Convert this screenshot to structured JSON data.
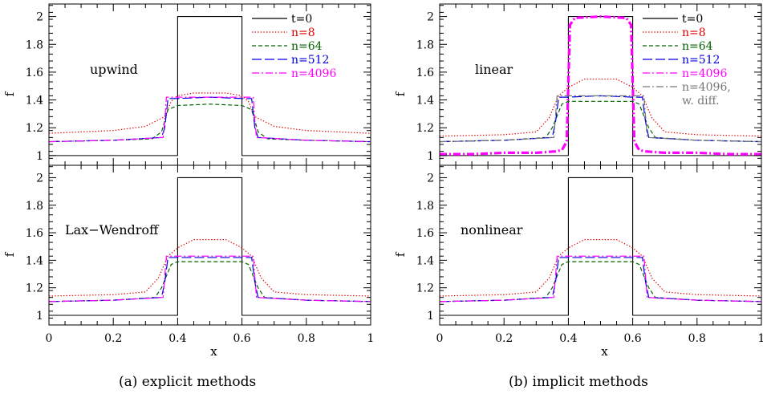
{
  "colors": {
    "t0": "#000000",
    "n8": "#e00000",
    "n64": "#006400",
    "n512": "#0000e0",
    "n4096": "#ff00ff",
    "diff": "#777777"
  },
  "captions": [
    "(a) explicit methods",
    "(b) implicit methods"
  ],
  "chart_data": [
    {
      "type": "line",
      "figure": "a",
      "xlabel": "x",
      "ylabel": "f",
      "xlim": [
        0,
        1
      ],
      "ylim": [
        0.93,
        2.09
      ],
      "xticks": [
        "0",
        "0.2",
        "0.4",
        "0.6",
        "0.8",
        "1"
      ],
      "yticks": [
        "1",
        "1.2",
        "1.4",
        "1.6",
        "1.8",
        "2"
      ],
      "legend": {
        "position": "top-right",
        "entries": [
          "t=0",
          "n=8",
          "n=64",
          "n=512",
          "n=4096"
        ]
      },
      "annotation": "upwind",
      "series": [
        {
          "name": "t=0",
          "style": "solid",
          "color": "#000000",
          "x": [
            0,
            0.4,
            0.4,
            0.6,
            0.6,
            1
          ],
          "y": [
            1,
            1,
            2,
            2,
            1,
            1
          ]
        },
        {
          "name": "n=8",
          "style": "dotted",
          "color": "#e00000",
          "x": [
            0,
            0.1,
            0.2,
            0.3,
            0.36,
            0.38,
            0.4,
            0.45,
            0.5,
            0.55,
            0.6,
            0.62,
            0.64,
            0.7,
            0.8,
            0.9,
            1
          ],
          "y": [
            1.16,
            1.17,
            1.18,
            1.21,
            1.28,
            1.39,
            1.43,
            1.45,
            1.45,
            1.45,
            1.43,
            1.39,
            1.28,
            1.21,
            1.18,
            1.17,
            1.16
          ]
        },
        {
          "name": "n=64",
          "style": "dashed",
          "color": "#006400",
          "x": [
            0,
            0.2,
            0.32,
            0.35,
            0.37,
            0.4,
            0.5,
            0.6,
            0.63,
            0.65,
            0.68,
            0.8,
            1
          ],
          "y": [
            1.1,
            1.11,
            1.12,
            1.17,
            1.33,
            1.36,
            1.37,
            1.36,
            1.33,
            1.17,
            1.12,
            1.11,
            1.1
          ]
        },
        {
          "name": "n=512",
          "style": "longdash",
          "color": "#0000e0",
          "x": [
            0,
            0.2,
            0.35,
            0.36,
            0.37,
            0.4,
            0.5,
            0.6,
            0.63,
            0.64,
            0.65,
            0.8,
            1
          ],
          "y": [
            1.1,
            1.11,
            1.13,
            1.2,
            1.41,
            1.41,
            1.42,
            1.41,
            1.41,
            1.2,
            1.13,
            1.11,
            1.1
          ]
        },
        {
          "name": "n=4096",
          "style": "dashdot",
          "color": "#ff00ff",
          "x": [
            0,
            0.2,
            0.355,
            0.36,
            0.365,
            0.4,
            0.5,
            0.6,
            0.635,
            0.64,
            0.645,
            0.8,
            1
          ],
          "y": [
            1.1,
            1.11,
            1.13,
            1.25,
            1.42,
            1.42,
            1.42,
            1.42,
            1.42,
            1.25,
            1.13,
            1.11,
            1.1
          ]
        }
      ]
    },
    {
      "type": "line",
      "figure": "a",
      "xlabel": "x",
      "ylabel": "f",
      "xlim": [
        0,
        1
      ],
      "ylim": [
        0.93,
        2.09
      ],
      "xticks": [
        "0",
        "0.2",
        "0.4",
        "0.6",
        "0.8",
        "1"
      ],
      "yticks": [
        "1",
        "1.2",
        "1.4",
        "1.6",
        "1.8",
        "2"
      ],
      "annotation": "Lax−Wendroff",
      "series": [
        {
          "name": "t=0",
          "style": "solid",
          "color": "#000000",
          "x": [
            0,
            0.4,
            0.4,
            0.6,
            0.6,
            1
          ],
          "y": [
            1,
            1,
            2,
            2,
            1,
            1
          ]
        },
        {
          "name": "n=8",
          "style": "dotted",
          "color": "#e00000",
          "x": [
            0,
            0.2,
            0.3,
            0.34,
            0.37,
            0.4,
            0.45,
            0.5,
            0.55,
            0.6,
            0.63,
            0.66,
            0.7,
            0.8,
            1
          ],
          "y": [
            1.14,
            1.15,
            1.17,
            1.27,
            1.43,
            1.49,
            1.55,
            1.55,
            1.55,
            1.49,
            1.43,
            1.27,
            1.17,
            1.15,
            1.14
          ]
        },
        {
          "name": "n=64",
          "style": "dashed",
          "color": "#006400",
          "x": [
            0,
            0.2,
            0.33,
            0.35,
            0.38,
            0.4,
            0.5,
            0.6,
            0.62,
            0.65,
            0.67,
            0.8,
            1
          ],
          "y": [
            1.1,
            1.11,
            1.13,
            1.2,
            1.37,
            1.39,
            1.39,
            1.39,
            1.37,
            1.2,
            1.13,
            1.11,
            1.1
          ]
        },
        {
          "name": "n=512",
          "style": "longdash",
          "color": "#0000e0",
          "x": [
            0,
            0.2,
            0.35,
            0.36,
            0.37,
            0.4,
            0.5,
            0.6,
            0.63,
            0.64,
            0.65,
            0.8,
            1
          ],
          "y": [
            1.1,
            1.11,
            1.13,
            1.24,
            1.42,
            1.42,
            1.42,
            1.42,
            1.42,
            1.24,
            1.13,
            1.11,
            1.1
          ]
        },
        {
          "name": "n=4096",
          "style": "dashdot",
          "color": "#ff00ff",
          "x": [
            0,
            0.2,
            0.355,
            0.36,
            0.365,
            0.4,
            0.5,
            0.6,
            0.635,
            0.64,
            0.645,
            0.8,
            1
          ],
          "y": [
            1.1,
            1.11,
            1.13,
            1.28,
            1.43,
            1.43,
            1.43,
            1.43,
            1.43,
            1.28,
            1.13,
            1.11,
            1.1
          ]
        }
      ]
    },
    {
      "type": "line",
      "figure": "b",
      "xlabel": "x",
      "ylabel": "f",
      "xlim": [
        0,
        1
      ],
      "ylim": [
        0.93,
        2.09
      ],
      "xticks": [
        "0",
        "0.2",
        "0.4",
        "0.6",
        "0.8",
        "1"
      ],
      "yticks": [
        "1",
        "1.2",
        "1.4",
        "1.6",
        "1.8",
        "2"
      ],
      "legend": {
        "position": "top-right",
        "entries": [
          "t=0",
          "n=8",
          "n=64",
          "n=512",
          "n=4096",
          "n=4096,",
          "w. diff."
        ]
      },
      "annotation": "linear",
      "series": [
        {
          "name": "t=0",
          "style": "solid",
          "color": "#000000",
          "x": [
            0,
            0.4,
            0.4,
            0.6,
            0.6,
            1
          ],
          "y": [
            1,
            1,
            2,
            2,
            1,
            1
          ]
        },
        {
          "name": "n=8",
          "style": "dotted",
          "color": "#e00000",
          "x": [
            0,
            0.2,
            0.3,
            0.34,
            0.37,
            0.4,
            0.45,
            0.5,
            0.55,
            0.6,
            0.63,
            0.66,
            0.7,
            0.8,
            1
          ],
          "y": [
            1.14,
            1.15,
            1.17,
            1.27,
            1.43,
            1.49,
            1.55,
            1.55,
            1.55,
            1.49,
            1.43,
            1.27,
            1.17,
            1.15,
            1.14
          ]
        },
        {
          "name": "n=64",
          "style": "dashed",
          "color": "#006400",
          "x": [
            0,
            0.2,
            0.33,
            0.35,
            0.38,
            0.4,
            0.5,
            0.6,
            0.62,
            0.65,
            0.67,
            0.8,
            1
          ],
          "y": [
            1.1,
            1.11,
            1.13,
            1.2,
            1.37,
            1.39,
            1.39,
            1.39,
            1.37,
            1.2,
            1.13,
            1.11,
            1.1
          ]
        },
        {
          "name": "n=512",
          "style": "longdash",
          "color": "#0000e0",
          "x": [
            0,
            0.2,
            0.35,
            0.36,
            0.37,
            0.4,
            0.5,
            0.6,
            0.63,
            0.64,
            0.65,
            0.8,
            1
          ],
          "y": [
            1.1,
            1.11,
            1.13,
            1.24,
            1.42,
            1.42,
            1.43,
            1.42,
            1.42,
            1.24,
            1.13,
            1.11,
            1.1
          ]
        },
        {
          "name": "n=4096",
          "style": "dashdot",
          "color": "#ff00ff",
          "x": [
            0,
            0.1,
            0.2,
            0.3,
            0.36,
            0.38,
            0.395,
            0.405,
            0.42,
            0.5,
            0.58,
            0.595,
            0.605,
            0.62,
            0.64,
            0.7,
            0.8,
            0.9,
            1
          ],
          "y": [
            1.01,
            1.01,
            1.02,
            1.02,
            1.03,
            1.04,
            1.1,
            1.94,
            1.99,
            2.0,
            1.99,
            1.94,
            1.1,
            1.04,
            1.03,
            1.02,
            1.02,
            1.01,
            1.01
          ]
        },
        {
          "name": "n=4096, w. diff.",
          "style": "dashdot",
          "color": "#777777",
          "x": [
            0,
            0.2,
            0.355,
            0.36,
            0.365,
            0.4,
            0.5,
            0.6,
            0.635,
            0.64,
            0.645,
            0.8,
            1
          ],
          "y": [
            1.1,
            1.11,
            1.13,
            1.28,
            1.43,
            1.43,
            1.43,
            1.43,
            1.43,
            1.28,
            1.13,
            1.11,
            1.1
          ]
        }
      ]
    },
    {
      "type": "line",
      "figure": "b",
      "xlabel": "x",
      "ylabel": "f",
      "xlim": [
        0,
        1
      ],
      "ylim": [
        0.93,
        2.09
      ],
      "xticks": [
        "0",
        "0.2",
        "0.4",
        "0.6",
        "0.8",
        "1"
      ],
      "yticks": [
        "1",
        "1.2",
        "1.4",
        "1.6",
        "1.8",
        "2"
      ],
      "annotation": "nonlinear",
      "series": [
        {
          "name": "t=0",
          "style": "solid",
          "color": "#000000",
          "x": [
            0,
            0.4,
            0.4,
            0.6,
            0.6,
            1
          ],
          "y": [
            1,
            1,
            2,
            2,
            1,
            1
          ]
        },
        {
          "name": "n=8",
          "style": "dotted",
          "color": "#e00000",
          "x": [
            0,
            0.2,
            0.3,
            0.34,
            0.37,
            0.4,
            0.45,
            0.5,
            0.55,
            0.6,
            0.63,
            0.66,
            0.7,
            0.8,
            1
          ],
          "y": [
            1.14,
            1.15,
            1.17,
            1.27,
            1.43,
            1.49,
            1.55,
            1.55,
            1.55,
            1.49,
            1.43,
            1.27,
            1.17,
            1.15,
            1.14
          ]
        },
        {
          "name": "n=64",
          "style": "dashed",
          "color": "#006400",
          "x": [
            0,
            0.2,
            0.33,
            0.35,
            0.38,
            0.4,
            0.5,
            0.6,
            0.62,
            0.65,
            0.67,
            0.8,
            1
          ],
          "y": [
            1.1,
            1.11,
            1.13,
            1.2,
            1.37,
            1.39,
            1.39,
            1.39,
            1.37,
            1.2,
            1.13,
            1.11,
            1.1
          ]
        },
        {
          "name": "n=512",
          "style": "longdash",
          "color": "#0000e0",
          "x": [
            0,
            0.2,
            0.35,
            0.36,
            0.37,
            0.4,
            0.5,
            0.6,
            0.63,
            0.64,
            0.65,
            0.8,
            1
          ],
          "y": [
            1.1,
            1.11,
            1.13,
            1.24,
            1.42,
            1.42,
            1.42,
            1.42,
            1.42,
            1.24,
            1.13,
            1.11,
            1.1
          ]
        },
        {
          "name": "n=4096",
          "style": "dashdot",
          "color": "#ff00ff",
          "x": [
            0,
            0.2,
            0.355,
            0.36,
            0.365,
            0.4,
            0.5,
            0.6,
            0.635,
            0.64,
            0.645,
            0.8,
            1
          ],
          "y": [
            1.1,
            1.11,
            1.13,
            1.28,
            1.43,
            1.43,
            1.43,
            1.43,
            1.43,
            1.28,
            1.13,
            1.11,
            1.1
          ]
        }
      ]
    }
  ]
}
